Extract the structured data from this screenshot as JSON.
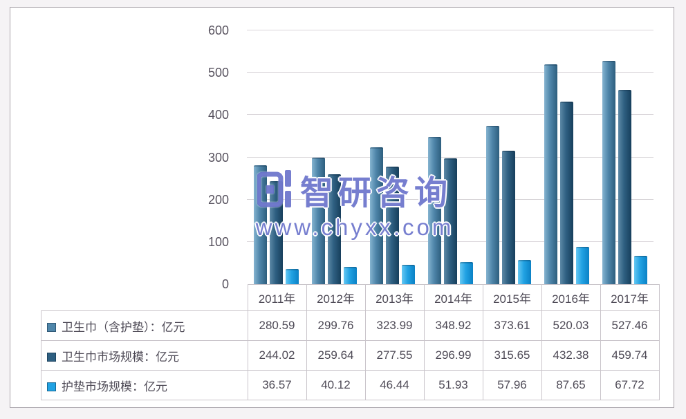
{
  "watermark": {
    "brand": "智研咨询",
    "url": "www.chyxx.com",
    "color": "#5862c4"
  },
  "chart_data": {
    "type": "bar",
    "title": "",
    "categories": [
      "2011年",
      "2012年",
      "2013年",
      "2014年",
      "2015年",
      "2016年",
      "2017年"
    ],
    "series": [
      {
        "name": "卫生巾（含护垫）：亿元",
        "values": [
          280.59,
          299.76,
          323.99,
          348.92,
          373.61,
          520.03,
          527.46
        ],
        "color": "#4f86aa",
        "color_light": "#85b4d0",
        "color_dark": "#2d5e7e"
      },
      {
        "name": "卫生巾市场规模：亿元",
        "values": [
          244.02,
          259.64,
          277.55,
          296.99,
          315.65,
          432.38,
          459.74
        ],
        "color": "#2e5f81",
        "color_light": "#5d89a6",
        "color_dark": "#173f5c"
      },
      {
        "name": "护垫市场规模：亿元",
        "values": [
          36.57,
          40.12,
          46.44,
          51.93,
          57.96,
          87.65,
          67.72
        ],
        "color": "#21a2e3",
        "color_light": "#66c8f3",
        "color_dark": "#0b81c5"
      }
    ],
    "ylim": [
      0,
      600
    ],
    "yticks": [
      0,
      100,
      200,
      300,
      400,
      500,
      600
    ],
    "grid": true,
    "legend_position": "table-left",
    "value_decimals": 2,
    "xlabel": "",
    "ylabel": ""
  }
}
